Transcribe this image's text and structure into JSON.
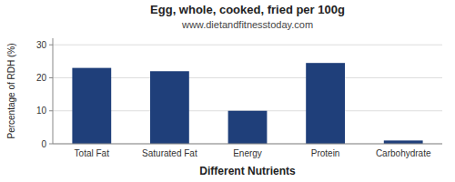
{
  "chart_data": {
    "type": "bar",
    "title": "Egg, whole, cooked, fried per 100g",
    "subtitle": "www.dietandfitnesstoday.com",
    "xlabel": "Different Nutrients",
    "ylabel": "Percentage of RDH (%)",
    "categories": [
      "Total Fat",
      "Saturated Fat",
      "Energy",
      "Protein",
      "Carbohydrate"
    ],
    "values": [
      23.0,
      22.0,
      10.0,
      24.5,
      1.0
    ],
    "color": "#1f3f7a",
    "ylim": [
      0,
      32
    ],
    "yticks": [
      0,
      10,
      20,
      30
    ],
    "grid": true
  }
}
